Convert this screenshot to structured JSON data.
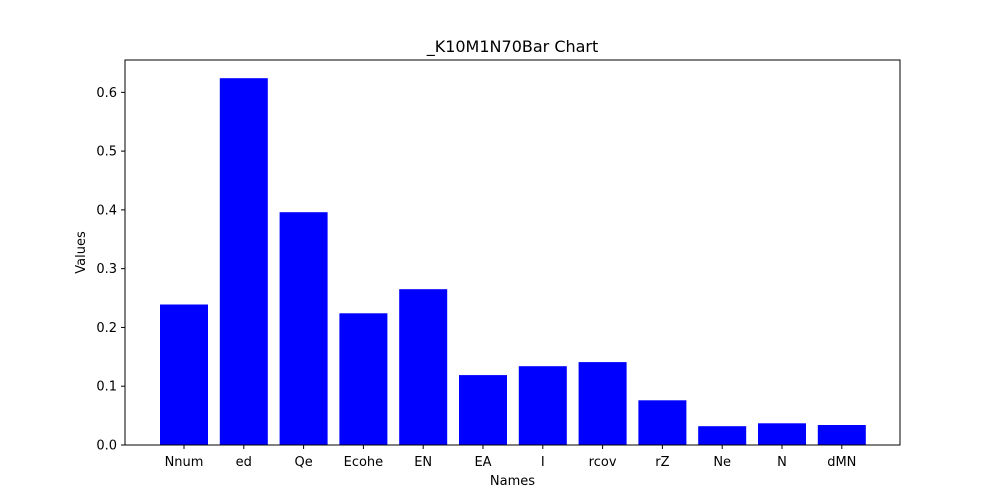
{
  "chart_data": {
    "type": "bar",
    "title": "_K10M1N70Bar Chart",
    "xlabel": "Names",
    "ylabel": "Values",
    "categories": [
      "Nnum",
      "ed",
      "Qe",
      "Ecohe",
      "EN",
      "EA",
      "I",
      "rcov",
      "rZ",
      "Ne",
      "N",
      "dMN"
    ],
    "values": [
      0.239,
      0.624,
      0.396,
      0.224,
      0.265,
      0.119,
      0.134,
      0.141,
      0.076,
      0.032,
      0.037,
      0.034
    ],
    "ylim": [
      0,
      0.655
    ],
    "yticks": [
      0.0,
      0.1,
      0.2,
      0.3,
      0.4,
      0.5,
      0.6
    ],
    "ytick_labels": [
      "0.0",
      "0.1",
      "0.2",
      "0.3",
      "0.4",
      "0.5",
      "0.6"
    ],
    "bar_color": "#0000ff",
    "grid": false,
    "legend": "none"
  }
}
